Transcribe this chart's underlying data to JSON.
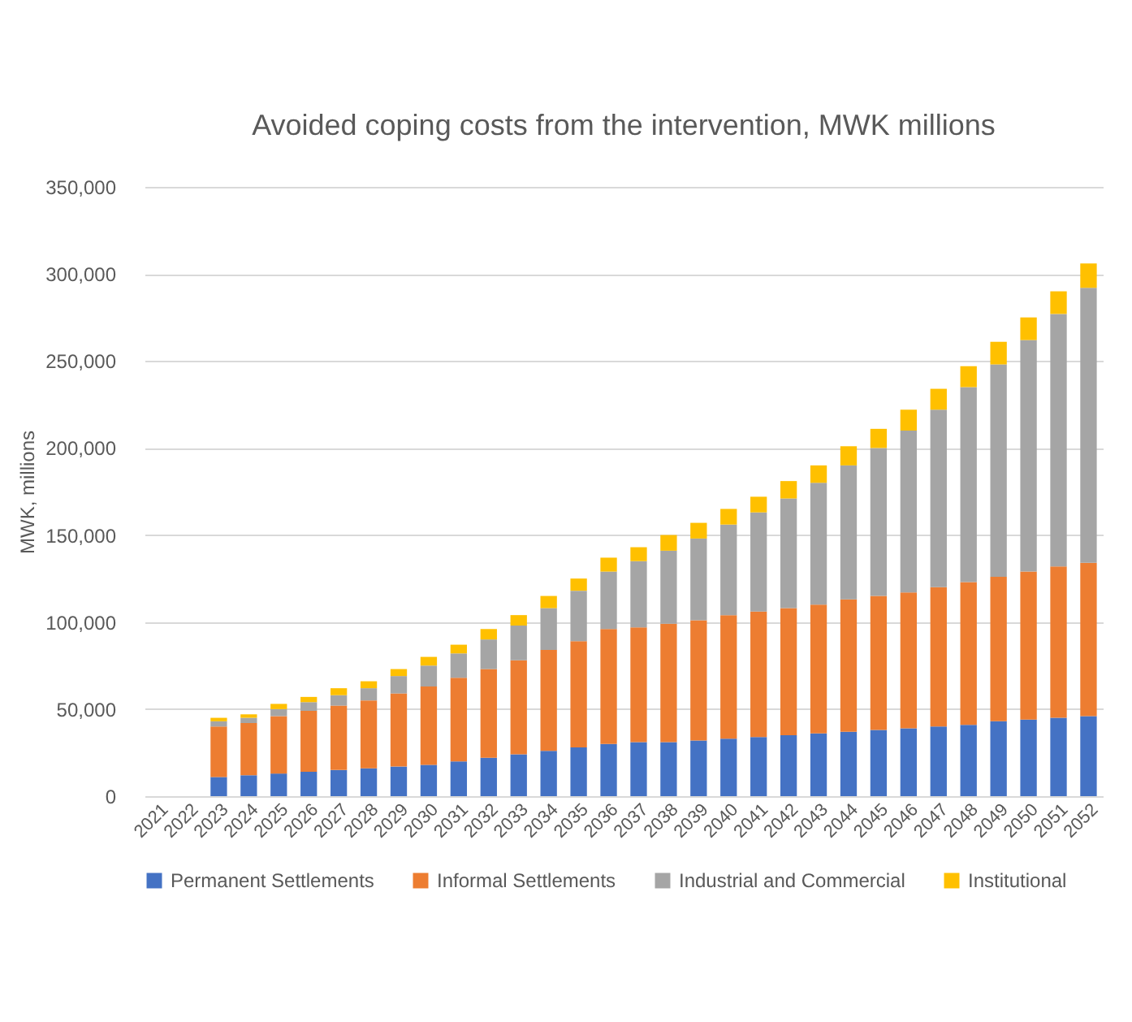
{
  "chart_data": {
    "type": "bar",
    "stacked": true,
    "title": "Avoided coping costs from the intervention, MWK millions",
    "ylabel": "MWK, millions",
    "categories": [
      "2021",
      "2022",
      "2023",
      "2024",
      "2025",
      "2026",
      "2027",
      "2028",
      "2029",
      "2030",
      "2031",
      "2032",
      "2033",
      "2034",
      "2035",
      "2036",
      "2037",
      "2038",
      "2039",
      "2040",
      "2041",
      "2042",
      "2043",
      "2044",
      "2045",
      "2046",
      "2047",
      "2048",
      "2049",
      "2050",
      "2051",
      "2052"
    ],
    "series": [
      {
        "name": "Permanent Settlements",
        "color": "#4472c4",
        "values": [
          null,
          null,
          11000,
          12000,
          13000,
          14000,
          15000,
          16000,
          17000,
          18000,
          20000,
          22000,
          24000,
          26000,
          28000,
          30000,
          31000,
          31000,
          32000,
          33000,
          34000,
          35000,
          36000,
          37000,
          38000,
          39000,
          40000,
          41000,
          43000,
          44000,
          45000,
          46000
        ]
      },
      {
        "name": "Informal Settlements",
        "color": "#ed7d31",
        "values": [
          null,
          null,
          29000,
          30000,
          33000,
          35000,
          37000,
          39000,
          42000,
          45000,
          48000,
          51000,
          54000,
          58000,
          61000,
          66000,
          66000,
          68000,
          69000,
          71000,
          72000,
          73000,
          74000,
          76000,
          77000,
          78000,
          80000,
          82000,
          83000,
          85000,
          87000,
          88000
        ]
      },
      {
        "name": "Industrial and Commercial",
        "color": "#a5a5a5",
        "values": [
          null,
          null,
          3000,
          3000,
          4000,
          5000,
          6000,
          7000,
          10000,
          12000,
          14000,
          17000,
          20000,
          24000,
          29000,
          33000,
          38000,
          42000,
          47000,
          52000,
          57000,
          63000,
          70000,
          77000,
          85000,
          93000,
          102000,
          112000,
          122000,
          133000,
          145000,
          158000
        ]
      },
      {
        "name": "Institutional",
        "color": "#ffc000",
        "values": [
          null,
          null,
          2000,
          2000,
          3000,
          3000,
          4000,
          4000,
          4000,
          5000,
          5000,
          6000,
          6000,
          7000,
          7000,
          8000,
          8000,
          9000,
          9000,
          9000,
          9000,
          10000,
          10000,
          11000,
          11000,
          12000,
          12000,
          12000,
          13000,
          13000,
          13000,
          14000
        ]
      }
    ],
    "ylim": [
      0,
      350000
    ],
    "yticks": [
      0,
      {
        "value": 50000,
        "label": "50,000"
      },
      {
        "value": 100000,
        "label": "100,000"
      },
      {
        "value": 150000,
        "label": "150,000"
      },
      {
        "value": 200000,
        "label": "200,000"
      },
      {
        "value": 250000,
        "label": "250,000"
      },
      {
        "value": 300000,
        "label": "300,000"
      },
      {
        "value": 350000,
        "label": "350,000"
      }
    ],
    "grid": "y",
    "legend": "bottom"
  }
}
